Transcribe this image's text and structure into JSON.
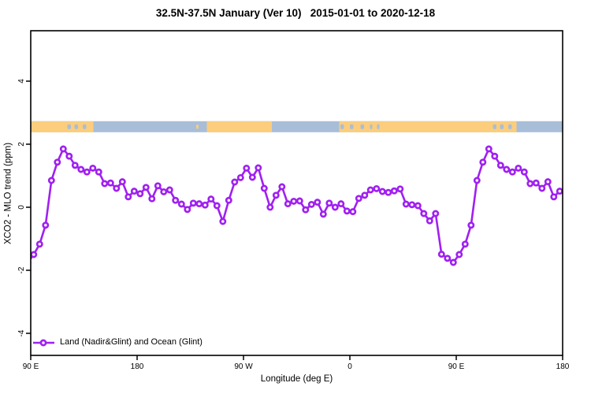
{
  "figure": {
    "title": "32.5N-37.5N January (Ver 10)   2015-01-01 to 2020-12-18",
    "xlabel": "Longitude (deg E)",
    "ylabel": "XCO2 - MLO trend (ppm)",
    "legend_label": "Land (Nadir&Glint) and Ocean (Glint)"
  },
  "chart_data": {
    "type": "line",
    "title": "32.5N-37.5N January (Ver 10)   2015-01-01 to 2020-12-18",
    "xlabel": "Longitude (deg E)",
    "ylabel": "XCO2 - MLO trend (ppm)",
    "legend": [
      "Land (Nadir&Glint) and Ocean (Glint)"
    ],
    "legend_position": "bottom-left-inside",
    "grid": false,
    "x_axis": {
      "lim_deg_unwrapped": [
        90,
        540
      ],
      "note": "longitude axis wraps: 90E -> 180 -> 90W -> 0 -> 90E -> 180",
      "ticks": [
        {
          "deg": 90,
          "label": "90 E"
        },
        {
          "deg": 180,
          "label": "180"
        },
        {
          "deg": 270,
          "label": "90 W"
        },
        {
          "deg": 360,
          "label": "0"
        },
        {
          "deg": 450,
          "label": "90 E"
        },
        {
          "deg": 540,
          "label": "180"
        }
      ]
    },
    "y_axis": {
      "lim": [
        -4.7,
        5.6
      ],
      "ticks": [
        -4,
        -2,
        0,
        2,
        4
      ]
    },
    "series": [
      {
        "name": "Land (Nadir&Glint) and Ocean (Glint)",
        "color": "#A020F0",
        "marker": "open-circle",
        "x_deg_unwrapped": [
          87.5,
          92.5,
          97.5,
          102.5,
          107.5,
          112.5,
          117.5,
          122.5,
          127.5,
          132.5,
          137.5,
          142.5,
          147.5,
          152.5,
          157.5,
          162.5,
          167.5,
          172.5,
          177.5,
          182.5,
          187.5,
          192.5,
          197.5,
          202.5,
          207.5,
          212.5,
          217.5,
          222.5,
          227.5,
          232.5,
          237.5,
          242.5,
          247.5,
          252.5,
          257.5,
          262.5,
          267.5,
          272.5,
          277.5,
          282.5,
          287.5,
          292.5,
          297.5,
          302.5,
          307.5,
          312.5,
          317.5,
          322.5,
          327.5,
          332.5,
          337.5,
          342.5,
          347.5,
          352.5,
          357.5,
          362.5,
          367.5,
          372.5,
          377.5,
          382.5,
          387.5,
          392.5,
          397.5,
          402.5,
          407.5,
          412.5,
          417.5,
          422.5,
          427.5,
          432.5,
          437.5,
          442.5,
          447.5,
          452.5,
          457.5,
          462.5,
          467.5,
          472.5,
          477.5,
          482.5,
          487.5,
          492.5,
          497.5,
          502.5,
          507.5,
          512.5,
          517.5,
          522.5,
          527.5,
          532.5,
          537.5
        ],
        "y_ppm": [
          -1.75,
          -1.5,
          -1.17,
          -0.57,
          0.85,
          1.43,
          1.85,
          1.62,
          1.33,
          1.2,
          1.12,
          1.24,
          1.12,
          0.75,
          0.77,
          0.6,
          0.81,
          0.33,
          0.51,
          0.43,
          0.63,
          0.27,
          0.68,
          0.49,
          0.55,
          0.22,
          0.1,
          -0.07,
          0.13,
          0.11,
          0.07,
          0.26,
          0.05,
          -0.45,
          0.22,
          0.8,
          0.94,
          1.24,
          0.95,
          1.25,
          0.6,
          0.0,
          0.38,
          0.65,
          0.11,
          0.19,
          0.2,
          -0.08,
          0.09,
          0.16,
          -0.22,
          0.13,
          0.0,
          0.11,
          -0.12,
          -0.14,
          0.28,
          0.38,
          0.55,
          0.59,
          0.5,
          0.47,
          0.52,
          0.58,
          0.1,
          0.08,
          0.05,
          -0.2,
          -0.43,
          -0.2,
          -1.49,
          -1.62,
          -1.75,
          -1.5,
          -1.17,
          -0.57,
          0.85,
          1.43,
          1.85,
          1.62,
          1.33,
          1.2,
          1.12,
          1.24,
          1.12,
          0.75,
          0.77,
          0.6,
          0.81,
          0.33,
          0.51
        ]
      }
    ],
    "map_band": {
      "description": "thin world-map strip (land/ocean) drawn across plot near 2.5 ppm",
      "y_range_ppm": [
        2.38,
        2.73
      ],
      "ocean_color": "#A8BED8",
      "land_color": "#FBCD7C",
      "land_segments_deg": [
        [
          90,
          143
        ],
        [
          239,
          294
        ],
        [
          351,
          501
        ]
      ],
      "ocean_specks_deg": [
        [
          121,
          124
        ],
        [
          127,
          130
        ],
        [
          134,
          137
        ],
        [
          352,
          355
        ],
        [
          360,
          363
        ],
        [
          369,
          372
        ],
        [
          377,
          379
        ],
        [
          383,
          385
        ],
        [
          481,
          484
        ],
        [
          487,
          490
        ],
        [
          494,
          497
        ]
      ],
      "land_specks_deg": [
        [
          230,
          232
        ]
      ]
    },
    "axis_color": "#000000",
    "background_color": "#ffffff"
  }
}
